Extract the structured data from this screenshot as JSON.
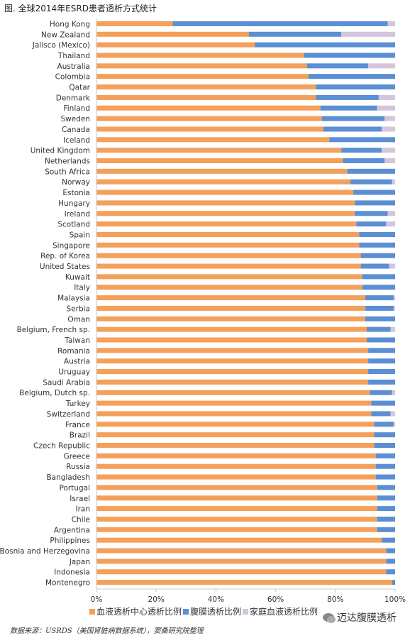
{
  "title": "图.  全球2014年ESRD患者透析方式统计",
  "source": "数据来源：USRDS（美国肾脏病数据系统），窦桑研究院整理",
  "watermark": "迈达腹膜透析",
  "colors": {
    "hd": "#f4a05b",
    "pd": "#5b8fd3",
    "home": "#d4c5dc",
    "axis": "#c8c8c8"
  },
  "chart_data": {
    "type": "bar",
    "orientation": "horizontal",
    "stacked": true,
    "xlim": [
      0,
      100
    ],
    "xticks": [
      "0%",
      "20%",
      "40%",
      "60%",
      "80%",
      "100%"
    ],
    "grid": false,
    "legend_placement": "bottom",
    "categories": [
      "Hong Kong",
      "New Zealand",
      "Jalisco (Mexico)",
      "Thailand",
      "Australia",
      "Colombia",
      "Qatar",
      "Denmark",
      "Finland",
      "Sweden",
      "Canada",
      "Iceland",
      "United Kingdom",
      "Netherlands",
      "South Africa",
      "Norway",
      "Estonia",
      "Hungary",
      "Ireland",
      "Scotland",
      "Spain",
      "Singapore",
      "Rep. of Korea",
      "United States",
      "Kuwait",
      "Italy",
      "Malaysia",
      "Serbia",
      "Oman",
      "Belgium, French sp.",
      "Taiwan",
      "Romania",
      "Austria",
      "Uruguay",
      "Saudi Arabia",
      "Belgium, Dutch sp.",
      "Turkey",
      "Switzerland",
      "France",
      "Brazil",
      "Czech Republic",
      "Greece",
      "Russia",
      "Bangladesh",
      "Portugal",
      "Israel",
      "Iran",
      "Chile",
      "Argentina",
      "Philippines",
      "Bosnia and Herzegovina",
      "Japan",
      "Indonesia",
      "Montenegro"
    ],
    "series": [
      {
        "name": "血液透析中心透析比例",
        "values": [
          25.5,
          51,
          53,
          69.5,
          70.5,
          71,
          73.5,
          73.5,
          75,
          75.5,
          76,
          78,
          82,
          82.5,
          84,
          85,
          86,
          86.5,
          86.5,
          87,
          88,
          88,
          88.5,
          88.5,
          89,
          89,
          90,
          90,
          90,
          90.5,
          90.5,
          91,
          91,
          91,
          91,
          91.5,
          92,
          92,
          93,
          93,
          93,
          93.5,
          93.5,
          93.5,
          94,
          94,
          94,
          94,
          94,
          95.5,
          97,
          97,
          97,
          99
        ]
      },
      {
        "name": "腹膜透析比例",
        "values": [
          72,
          31,
          47,
          30.5,
          20.5,
          29,
          26.5,
          21,
          19,
          21,
          19.5,
          22,
          13.5,
          14,
          16,
          14,
          14,
          13.5,
          11,
          10,
          12,
          12,
          11.5,
          9.5,
          11,
          11,
          9.5,
          9.5,
          10,
          8,
          9.5,
          9,
          9,
          9,
          9,
          7.5,
          8,
          6.5,
          6.5,
          7,
          7,
          6.5,
          6.5,
          6.5,
          6,
          6,
          6,
          6,
          6,
          4.5,
          3,
          3,
          3,
          1
        ]
      },
      {
        "name": "家庭血液透析比例",
        "values": [
          2.5,
          18,
          0,
          0,
          9,
          0,
          0,
          5.5,
          6,
          3.5,
          4.5,
          0,
          4.5,
          3.5,
          0,
          1,
          0,
          0,
          2.5,
          3,
          0,
          0,
          0,
          2,
          0,
          0,
          0.5,
          0.5,
          0,
          1.5,
          0,
          0,
          0,
          0,
          0,
          1,
          0,
          1.5,
          0.5,
          0,
          0,
          0,
          0,
          0,
          0,
          0,
          0,
          0,
          0,
          0,
          0,
          0,
          0,
          0
        ]
      }
    ]
  }
}
